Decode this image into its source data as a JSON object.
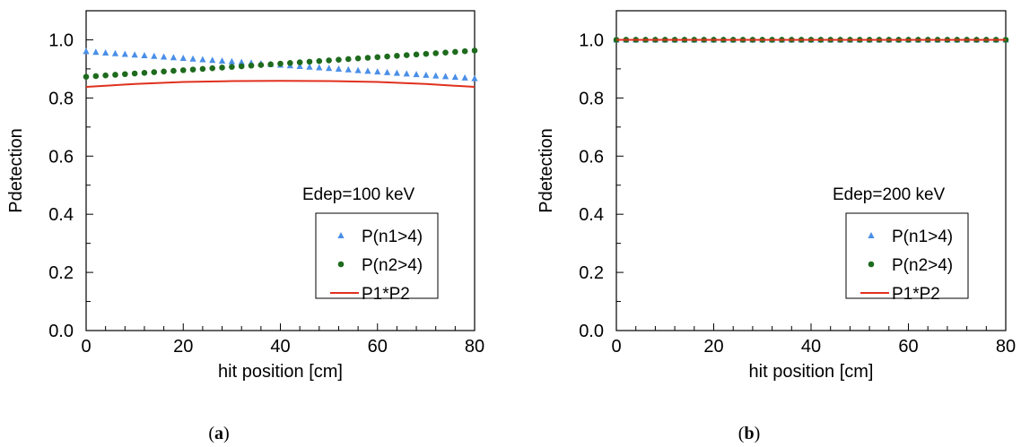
{
  "colors": {
    "series1": "#4a8fe8",
    "series2": "#1e6b1e",
    "product": "#e0301e",
    "axis": "#000000"
  },
  "chart_data": [
    {
      "type": "scatter",
      "panel_label": "(a)",
      "panel_letter": "a",
      "xlabel": "hit position [cm]",
      "ylabel": "Pdetection",
      "xlim": [
        0,
        80
      ],
      "ylim": [
        0,
        1.1
      ],
      "xticks": [
        "0",
        "20",
        "40",
        "60",
        "80"
      ],
      "yticks": [
        "0.0",
        "0.2",
        "0.4",
        "0.6",
        "0.8",
        "1.0"
      ],
      "annotation": "Edep=100 keV",
      "legend_position": "lower-right",
      "series": [
        {
          "name": "P(n1>4)",
          "marker": "triangle",
          "color": "#4a8fe8",
          "x_start": 0,
          "x_end": 80,
          "x_step": 2,
          "y_start": 0.96,
          "y_end": 0.867
        },
        {
          "name": "P(n2>4)",
          "marker": "circle",
          "color": "#1e6b1e",
          "x_start": 0,
          "x_end": 80,
          "x_step": 2,
          "y_start": 0.873,
          "y_end": 0.963
        },
        {
          "name": "P1*P2",
          "marker": "line",
          "color": "#e0301e",
          "x": [
            0,
            10,
            20,
            30,
            40,
            50,
            60,
            70,
            80
          ],
          "y": [
            0.838,
            0.848,
            0.855,
            0.858,
            0.859,
            0.858,
            0.855,
            0.848,
            0.838
          ]
        }
      ]
    },
    {
      "type": "scatter",
      "panel_label": "(b)",
      "panel_letter": "b",
      "xlabel": "hit position [cm]",
      "ylabel": "Pdetection",
      "xlim": [
        0,
        80
      ],
      "ylim": [
        0,
        1.1
      ],
      "xticks": [
        "0",
        "20",
        "40",
        "60",
        "80"
      ],
      "yticks": [
        "0.0",
        "0.2",
        "0.4",
        "0.6",
        "0.8",
        "1.0"
      ],
      "annotation": "Edep=200 keV",
      "legend_position": "lower-right",
      "series": [
        {
          "name": "P(n1>4)",
          "marker": "triangle",
          "color": "#4a8fe8",
          "x_start": 0,
          "x_end": 80,
          "x_step": 2,
          "y_start": 1.0,
          "y_end": 1.0
        },
        {
          "name": "P(n2>4)",
          "marker": "circle",
          "color": "#1e6b1e",
          "x_start": 0,
          "x_end": 80,
          "x_step": 2,
          "y_start": 1.0,
          "y_end": 1.0
        },
        {
          "name": "P1*P2",
          "marker": "line",
          "color": "#e0301e",
          "x": [
            0,
            80
          ],
          "y": [
            1.0,
            1.0
          ]
        }
      ]
    }
  ]
}
